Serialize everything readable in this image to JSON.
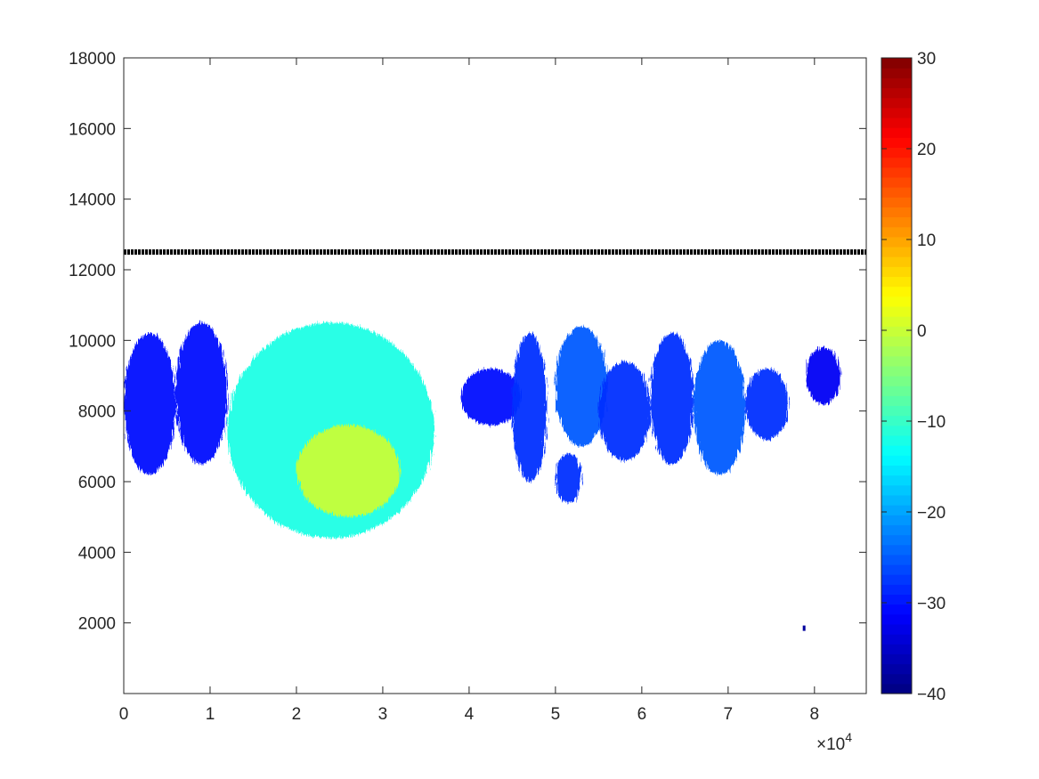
{
  "chart_data": {
    "type": "heatmap",
    "title": "",
    "xlabel": "",
    "ylabel": "",
    "xlim": [
      0,
      86000
    ],
    "ylim": [
      0,
      18000
    ],
    "x_ticks": [
      0,
      10000,
      20000,
      30000,
      40000,
      50000,
      60000,
      70000,
      80000
    ],
    "x_tick_labels": [
      "0",
      "1",
      "2",
      "3",
      "4",
      "5",
      "6",
      "7",
      "8"
    ],
    "x_exponent_label": {
      "base": "×10",
      "exp": "4"
    },
    "y_ticks": [
      2000,
      4000,
      6000,
      8000,
      10000,
      12000,
      14000,
      16000,
      18000
    ],
    "y_tick_labels": [
      "2000",
      "4000",
      "6000",
      "8000",
      "10000",
      "12000",
      "14000",
      "16000",
      "18000"
    ],
    "colorbar": {
      "colormap": "jet",
      "clim": [
        -40,
        30
      ],
      "ticks": [
        -40,
        -30,
        -20,
        -10,
        0,
        10,
        20,
        30
      ],
      "tick_labels": [
        "−40",
        "−30",
        "−20",
        "−10",
        "0",
        "10",
        "20",
        "30"
      ]
    },
    "reference_line": {
      "y": 12500,
      "x_range": [
        0,
        86000
      ],
      "color": "#000000",
      "style": "dense markers"
    },
    "regions": [
      {
        "x": [
          0,
          6000
        ],
        "y": [
          6200,
          10200
        ],
        "value": -30
      },
      {
        "x": [
          6000,
          12000
        ],
        "y": [
          6500,
          10500
        ],
        "value": -30
      },
      {
        "x": [
          12000,
          36000
        ],
        "y": [
          4400,
          10500
        ],
        "value": -12
      },
      {
        "x": [
          20000,
          32000
        ],
        "y": [
          5000,
          7600
        ],
        "value": 0
      },
      {
        "x": [
          39000,
          46000
        ],
        "y": [
          7600,
          9200
        ],
        "value": -30
      },
      {
        "x": [
          45000,
          49000
        ],
        "y": [
          6000,
          10200
        ],
        "value": -28
      },
      {
        "x": [
          50000,
          56000
        ],
        "y": [
          7000,
          10400
        ],
        "value": -25
      },
      {
        "x": [
          50000,
          53000
        ],
        "y": [
          5400,
          6800
        ],
        "value": -28
      },
      {
        "x": [
          55000,
          61000
        ],
        "y": [
          6600,
          9400
        ],
        "value": -28
      },
      {
        "x": [
          61000,
          66000
        ],
        "y": [
          6500,
          10200
        ],
        "value": -28
      },
      {
        "x": [
          66000,
          72000
        ],
        "y": [
          6200,
          10000
        ],
        "value": -25
      },
      {
        "x": [
          72000,
          77000
        ],
        "y": [
          7200,
          9200
        ],
        "value": -28
      },
      {
        "x": [
          79000,
          83000
        ],
        "y": [
          8200,
          9800
        ],
        "value": -32
      }
    ],
    "isolated_points": [
      {
        "x": 78800,
        "y": 1850,
        "value": -38
      }
    ]
  }
}
